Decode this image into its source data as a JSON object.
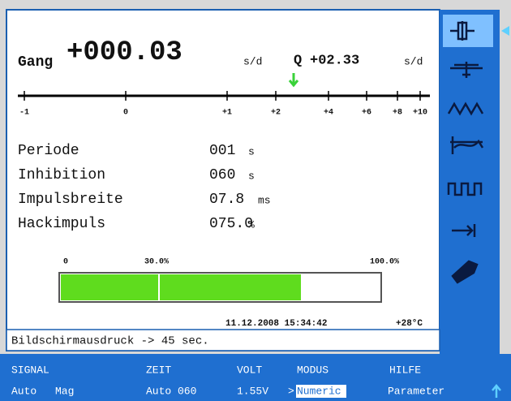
{
  "header": {
    "gang_label": "Gang",
    "gang_value": "+000.03",
    "gang_unit": "s/d",
    "q_label": "Q",
    "q_value": "+02.33",
    "q_unit": "s/d"
  },
  "scale": {
    "labels": [
      "-1",
      "0",
      "+1",
      "+2",
      "+4",
      "+6",
      "+8",
      "+10"
    ]
  },
  "parameters": [
    {
      "label": "Periode",
      "value": "001",
      "unit": "s"
    },
    {
      "label": "Inhibition",
      "value": "060",
      "unit": "s"
    },
    {
      "label": "Impulsbreite",
      "value": "07.8",
      "unit": "ms"
    },
    {
      "label": "Hackimpuls",
      "value": "075.0",
      "unit": "%"
    }
  ],
  "bar": {
    "min_label": "0",
    "mark_label": "30.0%",
    "max_label": "100.0%"
  },
  "status": {
    "datetime": "11.12.2008 15:34:42",
    "temperature": "+28°C",
    "message": "Bildschirmausdruck -> 45 sec."
  },
  "menu": [
    {
      "title": "SIGNAL",
      "items": [
        "Auto",
        "Mag"
      ]
    },
    {
      "title": "ZEIT",
      "items": [
        "Auto 060"
      ]
    },
    {
      "title": "VOLT",
      "items": [
        "1.55V"
      ]
    },
    {
      "title": "MODUS",
      "items": [
        ">",
        "Numeric"
      ]
    },
    {
      "title": "HILFE",
      "items": [
        "Parameter"
      ]
    }
  ]
}
